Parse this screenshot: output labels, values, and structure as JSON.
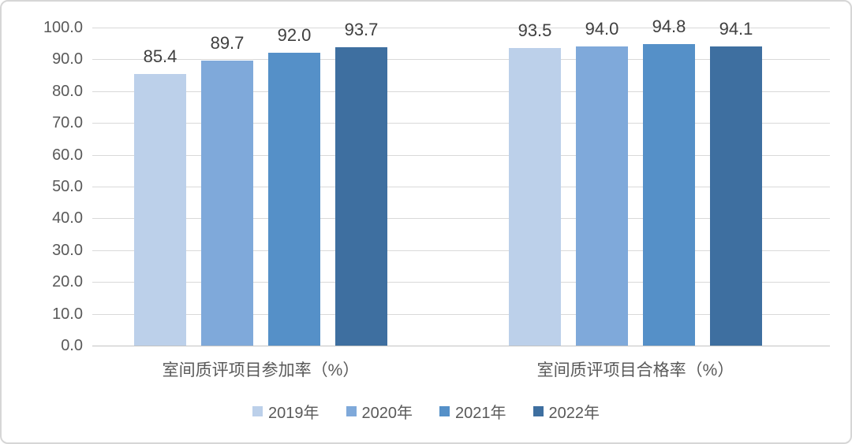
{
  "chart_data": {
    "type": "bar",
    "title": "",
    "categories": [
      "室间质评项目参加率（%）",
      "室间质评项目合格率（%）"
    ],
    "series": [
      {
        "name": "2019年",
        "color": "#bcd0ea",
        "values": [
          85.4,
          93.5
        ]
      },
      {
        "name": "2020年",
        "color": "#7fa9da",
        "values": [
          89.7,
          94.0
        ]
      },
      {
        "name": "2021年",
        "color": "#5590c8",
        "values": [
          92.0,
          94.8
        ]
      },
      {
        "name": "2022年",
        "color": "#3e6fa0",
        "values": [
          93.7,
          94.1
        ]
      }
    ],
    "value_labels": [
      [
        "85.4",
        "89.7",
        "92.0",
        "93.7"
      ],
      [
        "93.5",
        "94.0",
        "94.8",
        "94.1"
      ]
    ],
    "y_axis": {
      "ticks": [
        "100.0",
        "90.0",
        "80.0",
        "70.0",
        "60.0",
        "50.0",
        "40.0",
        "30.0",
        "20.0",
        "10.0",
        "0.0"
      ],
      "min": 0,
      "max": 100
    },
    "grid": true,
    "legend": {
      "position": "bottom",
      "entries": [
        "2019年",
        "2020年",
        "2021年",
        "2022年"
      ]
    },
    "style": {
      "gridline_color": "#d9d9d9",
      "baseline_color": "#c3c3c3",
      "tick_label_color": "#595959",
      "value_label_color": "#3f3f3f",
      "frame_border_color": "#d6d6d6"
    }
  }
}
